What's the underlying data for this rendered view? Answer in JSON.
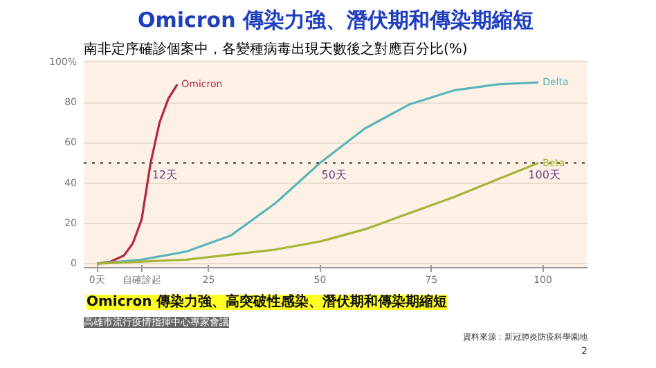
{
  "chart_data": {
    "type": "line",
    "title": "Omicron 傳染力強、潛伏期和傳染期縮短",
    "subtitle": "南非定序確診個案中，各變種病毒出現天數後之對應百分比(%)",
    "x": [
      0,
      3,
      6,
      8,
      10,
      12,
      14,
      16,
      18
    ],
    "series": [
      {
        "name": "Omicron",
        "color": "#b5263f",
        "values": [
          0,
          1,
          4,
          10,
          22,
          50,
          70,
          82,
          89
        ]
      },
      {
        "name": "Delta",
        "color": "#5bb5b8",
        "x": [
          0,
          10,
          20,
          30,
          40,
          50,
          60,
          70,
          80,
          90,
          99
        ],
        "values": [
          0,
          2,
          6,
          14,
          30,
          50,
          67,
          79,
          86,
          89,
          90
        ]
      },
      {
        "name": "Beta",
        "color": "#a6b43a",
        "x": [
          0,
          20,
          40,
          50,
          60,
          70,
          80,
          90,
          99
        ],
        "values": [
          0,
          2,
          7,
          11,
          17,
          25,
          33,
          42,
          50
        ]
      }
    ],
    "xlim": [
      -3,
      110
    ],
    "ylim": [
      -2,
      101
    ],
    "xticks": [
      {
        "value": 0,
        "label": "0天"
      },
      {
        "value": 10,
        "label": "自確診起"
      },
      25,
      50,
      75,
      100
    ],
    "yticks": [
      0,
      20,
      40,
      60,
      80,
      {
        "value": 100,
        "label": "100%"
      }
    ],
    "grid": "y",
    "ref_lines": [
      {
        "axis": "y",
        "value": 50,
        "line_style": "dotted",
        "color": "#555555"
      }
    ],
    "annotations": [
      {
        "text": "12天",
        "x": 12,
        "y": 50
      },
      {
        "text": "50天",
        "x": 50,
        "y": 50
      },
      {
        "text": "100天",
        "x": 100,
        "y": 50
      },
      "Omicron 傳染力強、高突破性感染、潛伏期和傳染期縮短",
      "高雄市流行疫情指揮中心專家會議",
      "資料來源：新冠肺炎防疫科學園地",
      "2"
    ]
  }
}
